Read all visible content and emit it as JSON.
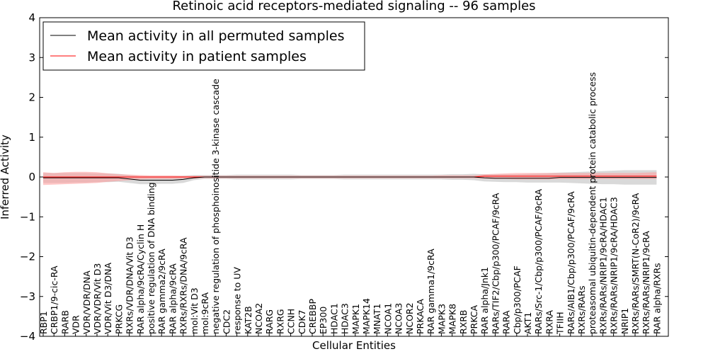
{
  "chart_data": {
    "type": "line",
    "title": "Retinoic acid receptors-mediated signaling -- 96 samples",
    "xlabel": "Cellular Entities",
    "ylabel": "Inferred Activity",
    "ylim": [
      -4,
      4
    ],
    "yticks": [
      -4,
      -3,
      -2,
      -1,
      0,
      1,
      2,
      3,
      4
    ],
    "grid": false,
    "legend_position": "top-left",
    "colors": {
      "permuted": "#000000",
      "patient": "#ff0000",
      "permuted_band": "#cccccc",
      "patient_band": "#ff9999"
    },
    "categories": [
      "RBP1",
      "CRBP1/9-cic-RA",
      "RARB",
      "VDR",
      "VDR/VDR/DNA",
      "VDR/VDR/Vit D3",
      "VDR/Vit D3/DNA",
      "PRKCG",
      "RXRs/VDR/DNA/Vit D3",
      "RAR alpha/9cRA/Cyclin H",
      "positive regulation of DNA binding",
      "RAR gamma2/9cRA",
      "RAR alpha/9cRA",
      "RXRs/RXRs/DNA/9cRA",
      "mol:Vit D3",
      "mol:9cRA",
      "negative regulation of phosphoinositide 3-kinase cascade",
      "CDC2",
      "response to UV",
      "KAT2B",
      "NCOA2",
      "RARG",
      "RXRG",
      "CCNH",
      "CDK7",
      "CREBBP",
      "EP300",
      "HDAC1",
      "HDAC3",
      "MAPK1",
      "MAPK14",
      "MNAT1",
      "NCOA1",
      "NCOA3",
      "NCOR2",
      "PRKACA",
      "RAR gamma1/9cRA",
      "MAPK3",
      "MAPK8",
      "RXRB",
      "PRKCA",
      "RAR alpha/Jnk1",
      "RARs/TIF2/Cbp/p300/PCAF/9cRA",
      "RARA",
      "Cbp/p300/PCAF",
      "AKT1",
      "RARs/Src-1/Cbp/p300/PCAF/9cRA",
      "RXRA",
      "TFIIH",
      "RARs/AIB1/Cbp/p300/PCAF/9cRA",
      "RXRs/RARs",
      "proteasomal ubiquitin-dependent protein catabolic process",
      "RXRs/RARs/NRIP1/9cRA/HDAC1",
      "RXRs/RARs/NRIP1/9cRA/HDAC3",
      "NRIP1",
      "RXRs/RARs/SMRT(N-CoR2)/9cRA",
      "RXRs/RARs/NRIP1/9cRA",
      "RAR alpha/RXRs"
    ],
    "series": [
      {
        "name": "Mean activity in all permuted samples",
        "values": [
          -0.02,
          -0.02,
          -0.02,
          -0.02,
          -0.02,
          -0.02,
          -0.02,
          -0.02,
          -0.05,
          -0.08,
          -0.08,
          -0.08,
          -0.08,
          -0.06,
          -0.02,
          0,
          0,
          0,
          0,
          0,
          0,
          0,
          0,
          0,
          0,
          0,
          0,
          0,
          0,
          0,
          0,
          0,
          0,
          0,
          0,
          0,
          0,
          0,
          0,
          0,
          0,
          -0.02,
          -0.03,
          -0.03,
          -0.03,
          -0.03,
          -0.03,
          -0.03,
          -0.01,
          -0.01,
          -0.01,
          -0.01,
          -0.01,
          -0.01,
          -0.01,
          -0.01,
          -0.01,
          -0.01
        ],
        "lower": [
          -0.15,
          -0.15,
          -0.15,
          -0.14,
          -0.14,
          -0.13,
          -0.13,
          -0.12,
          -0.15,
          -0.18,
          -0.18,
          -0.17,
          -0.17,
          -0.15,
          -0.08,
          -0.05,
          -0.05,
          -0.05,
          -0.06,
          -0.06,
          -0.06,
          -0.06,
          -0.06,
          -0.06,
          -0.05,
          -0.05,
          -0.05,
          -0.05,
          -0.06,
          -0.06,
          -0.06,
          -0.06,
          -0.06,
          -0.06,
          -0.06,
          -0.06,
          -0.06,
          -0.06,
          -0.07,
          -0.07,
          -0.08,
          -0.11,
          -0.12,
          -0.13,
          -0.13,
          -0.14,
          -0.14,
          -0.14,
          -0.14,
          -0.15,
          -0.16,
          -0.17,
          -0.18,
          -0.18,
          -0.19,
          -0.19,
          -0.19,
          -0.19
        ],
        "upper": [
          0.1,
          0.1,
          0.1,
          0.1,
          0.1,
          0.09,
          0.09,
          0.08,
          0.05,
          0.02,
          0.02,
          0.02,
          0.02,
          0.03,
          0.05,
          0.05,
          0.05,
          0.05,
          0.06,
          0.06,
          0.06,
          0.06,
          0.06,
          0.06,
          0.05,
          0.05,
          0.05,
          0.05,
          0.06,
          0.06,
          0.06,
          0.06,
          0.06,
          0.06,
          0.06,
          0.06,
          0.06,
          0.06,
          0.07,
          0.07,
          0.08,
          0.07,
          0.07,
          0.07,
          0.07,
          0.08,
          0.09,
          0.1,
          0.11,
          0.12,
          0.13,
          0.14,
          0.15,
          0.16,
          0.17,
          0.17,
          0.17,
          0.17
        ]
      },
      {
        "name": "Mean activity in patient samples",
        "values": [
          0,
          0,
          0,
          0,
          0,
          0,
          0,
          0,
          0,
          0,
          0,
          0,
          0,
          0,
          0,
          0,
          0,
          0,
          0,
          0,
          0,
          0,
          0,
          0,
          0,
          0,
          0,
          0,
          0,
          0,
          0,
          0,
          0,
          0,
          0,
          0,
          0,
          0,
          0,
          0,
          0,
          0.02,
          0.02,
          0.02,
          0.02,
          0.02,
          0.02,
          0.02,
          0.02,
          0.02,
          0.02,
          0.02,
          0.02,
          0.02,
          0.02,
          0.02,
          0.02,
          0.02
        ],
        "lower": [
          -0.2,
          -0.19,
          -0.18,
          -0.17,
          -0.16,
          -0.15,
          -0.12,
          -0.1,
          -0.08,
          -0.06,
          -0.05,
          -0.05,
          -0.05,
          -0.04,
          -0.04,
          -0.03,
          -0.03,
          -0.03,
          -0.03,
          -0.03,
          -0.03,
          -0.03,
          -0.03,
          -0.03,
          -0.03,
          -0.03,
          -0.03,
          -0.03,
          -0.03,
          -0.03,
          -0.03,
          -0.03,
          -0.03,
          -0.03,
          -0.03,
          -0.03,
          -0.03,
          -0.03,
          -0.03,
          -0.03,
          -0.03,
          -0.04,
          -0.05,
          -0.05,
          -0.06,
          -0.06,
          -0.06,
          -0.06,
          -0.05,
          -0.05,
          -0.05,
          -0.05,
          -0.05,
          -0.05,
          -0.05,
          -0.05,
          -0.05,
          -0.05
        ],
        "upper": [
          0.12,
          0.1,
          0.12,
          0.13,
          0.13,
          0.12,
          0.09,
          0.07,
          0.06,
          0.05,
          0.04,
          0.04,
          0.04,
          0.03,
          0.03,
          0.03,
          0.03,
          0.03,
          0.03,
          0.03,
          0.03,
          0.03,
          0.03,
          0.03,
          0.03,
          0.03,
          0.03,
          0.03,
          0.03,
          0.03,
          0.03,
          0.03,
          0.03,
          0.03,
          0.03,
          0.03,
          0.03,
          0.04,
          0.04,
          0.04,
          0.04,
          0.07,
          0.08,
          0.09,
          0.1,
          0.1,
          0.1,
          0.1,
          0.1,
          0.1,
          0.1,
          0.1,
          0.1,
          0.1,
          0.1,
          0.1,
          0.11,
          0.12
        ]
      }
    ]
  }
}
